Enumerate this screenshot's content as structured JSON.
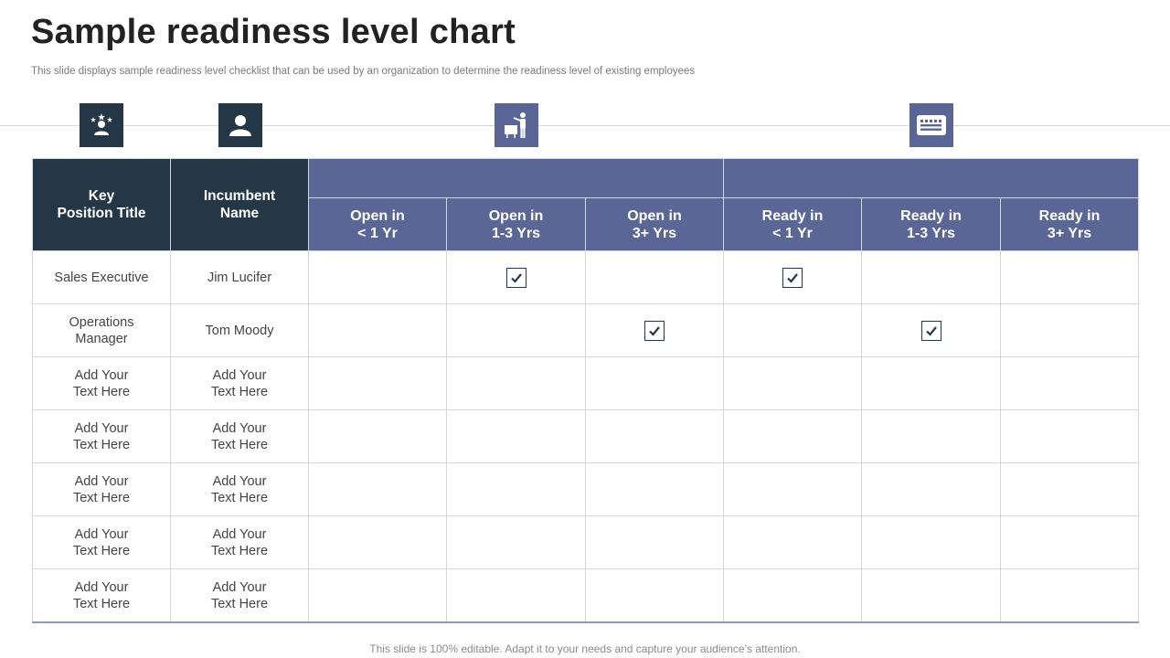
{
  "title": "Sample readiness level chart",
  "subtitle": "This slide displays sample readiness level checklist that can be used by an organization to determine the readiness level of existing employees",
  "icons": [
    "star-person-icon",
    "person-icon",
    "presenter-icon",
    "keyboard-icon"
  ],
  "colors": {
    "dark": "#243746",
    "accent": "#5a6796"
  },
  "table": {
    "headers": {
      "key_position": "Key\nPosition Title",
      "incumbent": "Incumbent\nName",
      "open": [
        "Open in\n< 1 Yr",
        "Open in\n1-3 Yrs",
        "Open in\n3+ Yrs"
      ],
      "ready": [
        "Ready in\n< 1 Yr",
        "Ready in\n1-3 Yrs",
        "Ready in\n3+ Yrs"
      ]
    },
    "rows": [
      {
        "position": "Sales Executive",
        "name": "Jim Lucifer",
        "checks": [
          false,
          true,
          false,
          true,
          false,
          false
        ]
      },
      {
        "position": "Operations\nManager",
        "name": "Tom Moody",
        "checks": [
          false,
          false,
          true,
          false,
          true,
          false
        ]
      },
      {
        "position": "Add Your\nText Here",
        "name": "Add Your\nText Here",
        "checks": [
          false,
          false,
          false,
          false,
          false,
          false
        ]
      },
      {
        "position": "Add Your\nText Here",
        "name": "Add Your\nText Here",
        "checks": [
          false,
          false,
          false,
          false,
          false,
          false
        ]
      },
      {
        "position": "Add Your\nText Here",
        "name": "Add Your\nText Here",
        "checks": [
          false,
          false,
          false,
          false,
          false,
          false
        ]
      },
      {
        "position": "Add Your\nText Here",
        "name": "Add Your\nText Here",
        "checks": [
          false,
          false,
          false,
          false,
          false,
          false
        ]
      },
      {
        "position": "Add Your\nText Here",
        "name": "Add Your\nText Here",
        "checks": [
          false,
          false,
          false,
          false,
          false,
          false
        ]
      }
    ]
  },
  "footer": "This slide is 100% editable. Adapt it to your needs and capture your audience’s attention."
}
